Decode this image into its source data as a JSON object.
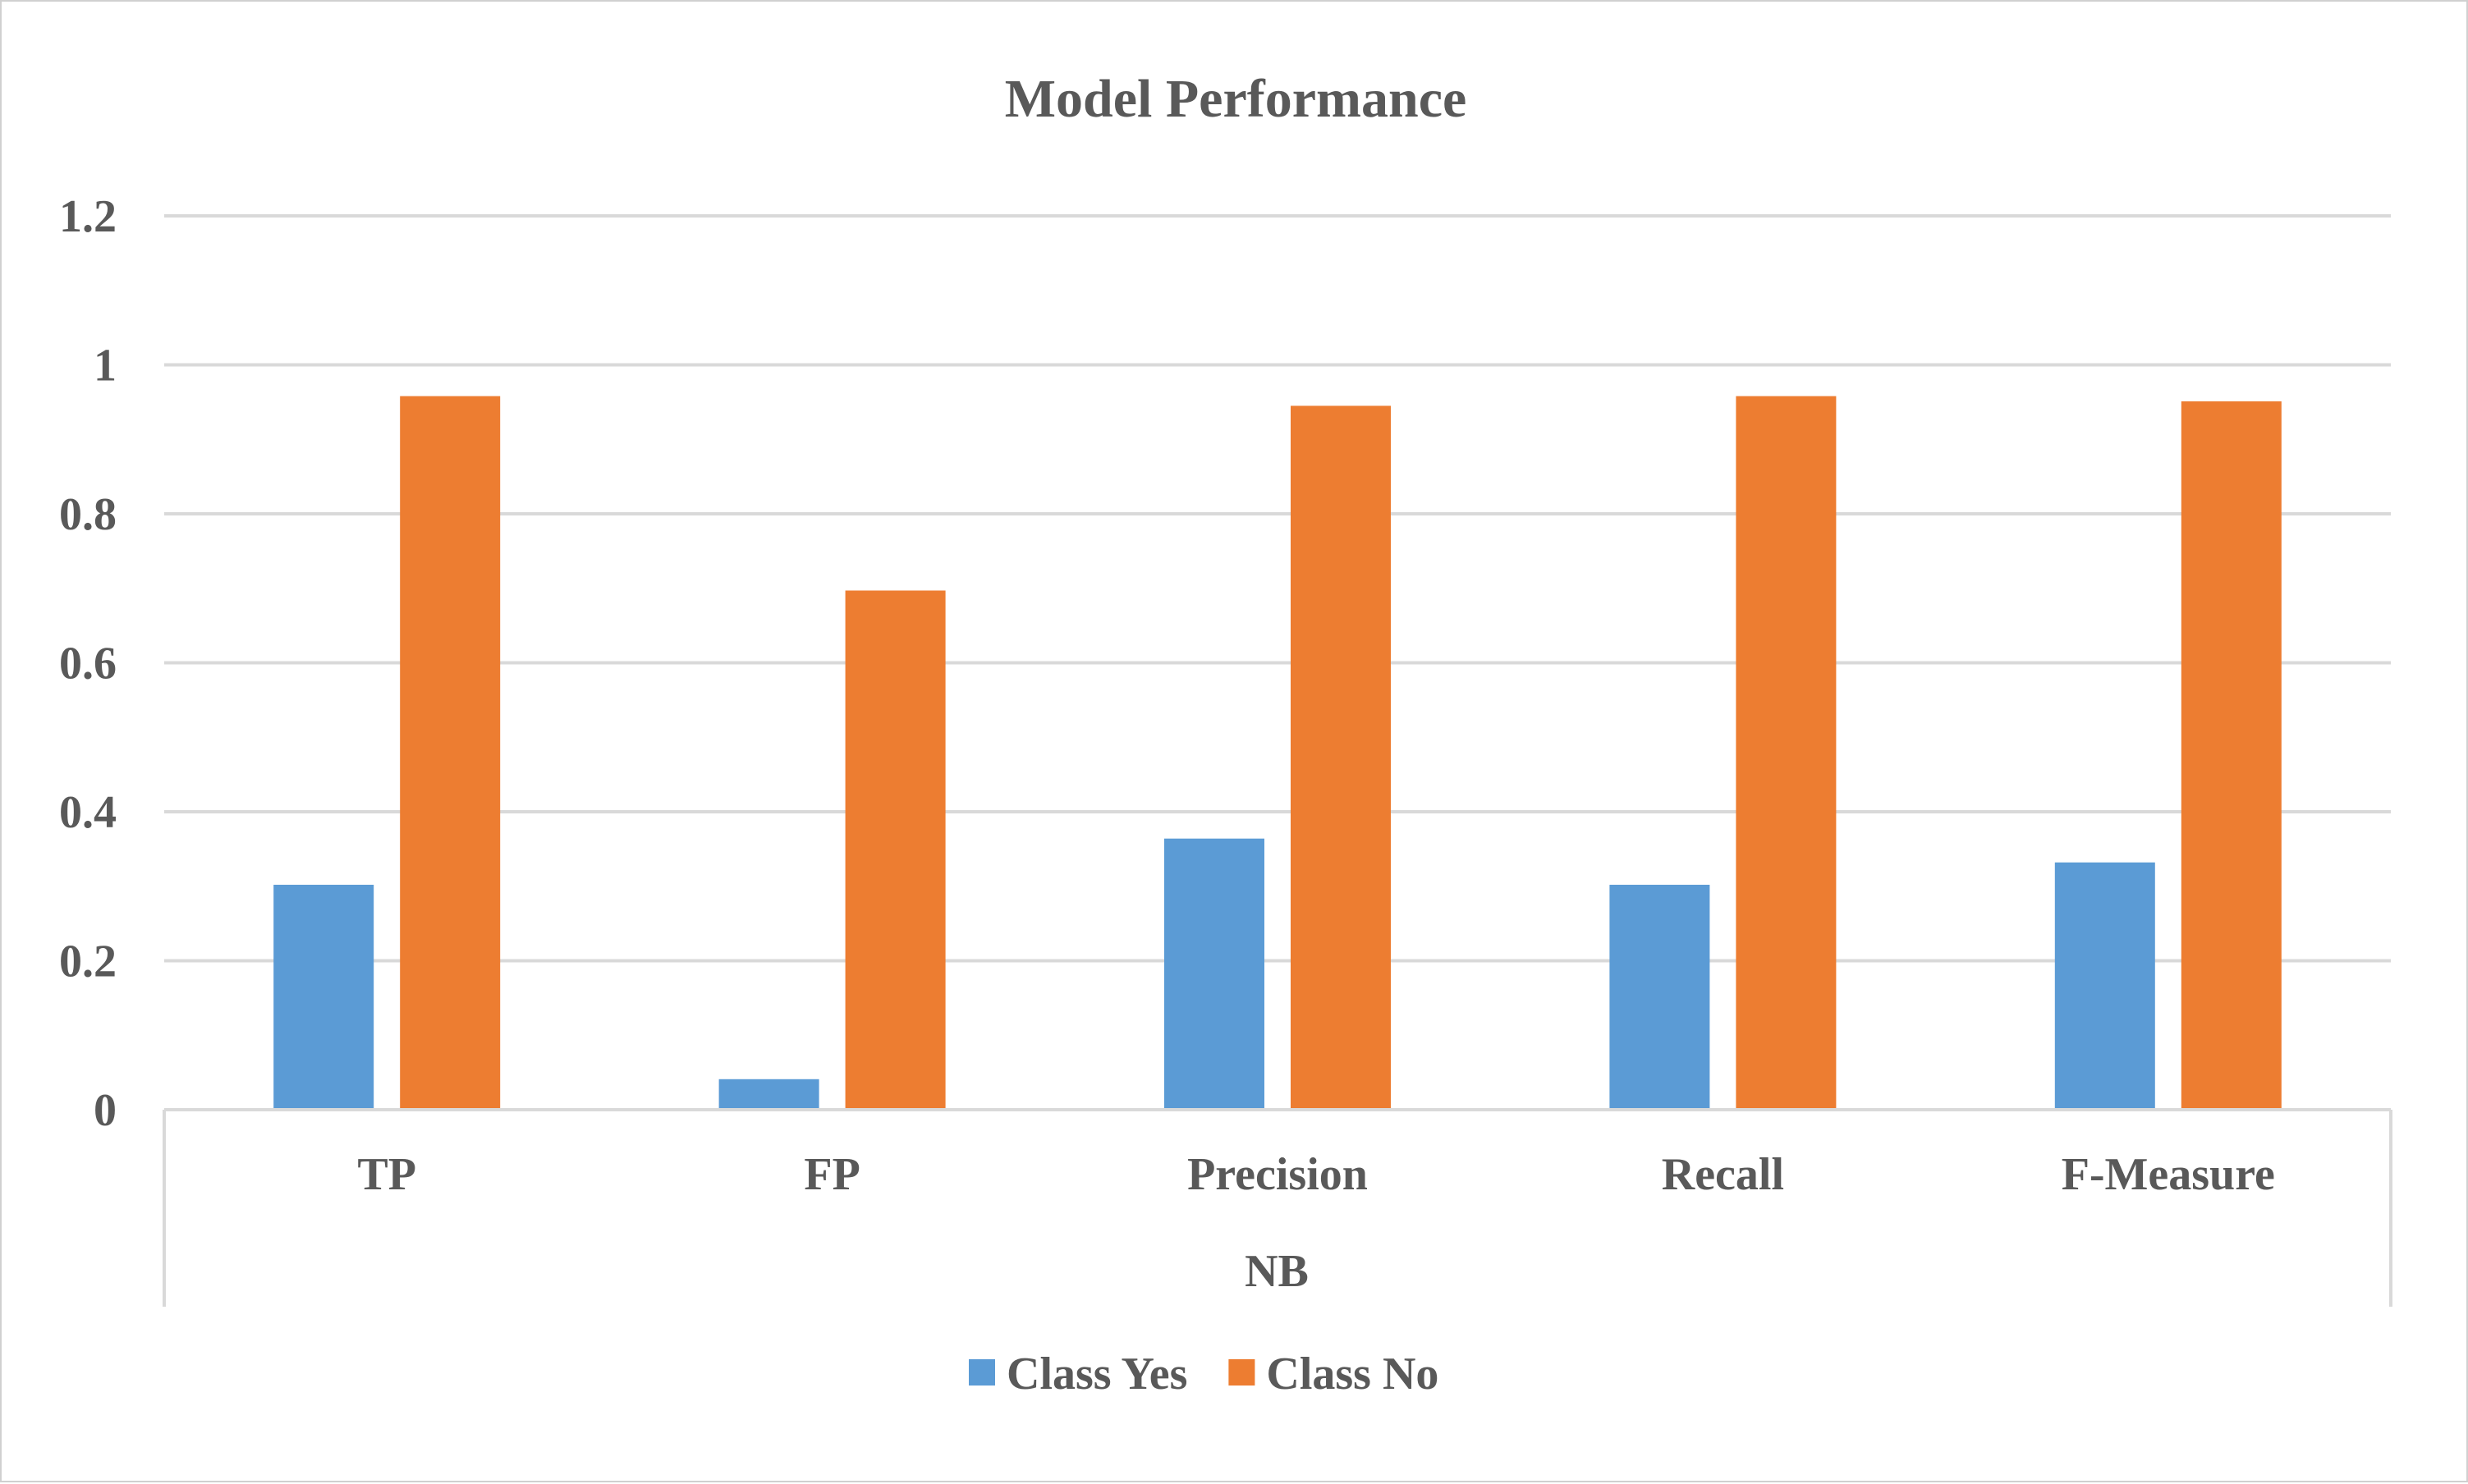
{
  "chart_data": {
    "type": "bar",
    "title": "Model Performance",
    "categories": [
      "TP",
      "FP",
      "Precision",
      "Recall",
      "F-Measure"
    ],
    "group_label": "NB",
    "series": [
      {
        "name": "Class Yes",
        "values": [
          0.302,
          0.041,
          0.364,
          0.302,
          0.332
        ],
        "color": "#5b9bd5"
      },
      {
        "name": "Class No",
        "values": [
          0.958,
          0.697,
          0.945,
          0.958,
          0.951
        ],
        "color": "#ed7d31"
      }
    ],
    "ylim": [
      0,
      1.2
    ],
    "yticks": [
      "0",
      "0.2",
      "0.4",
      "0.6",
      "0.8",
      "1",
      "1.2"
    ],
    "grid": true,
    "legend_position": "bottom"
  }
}
